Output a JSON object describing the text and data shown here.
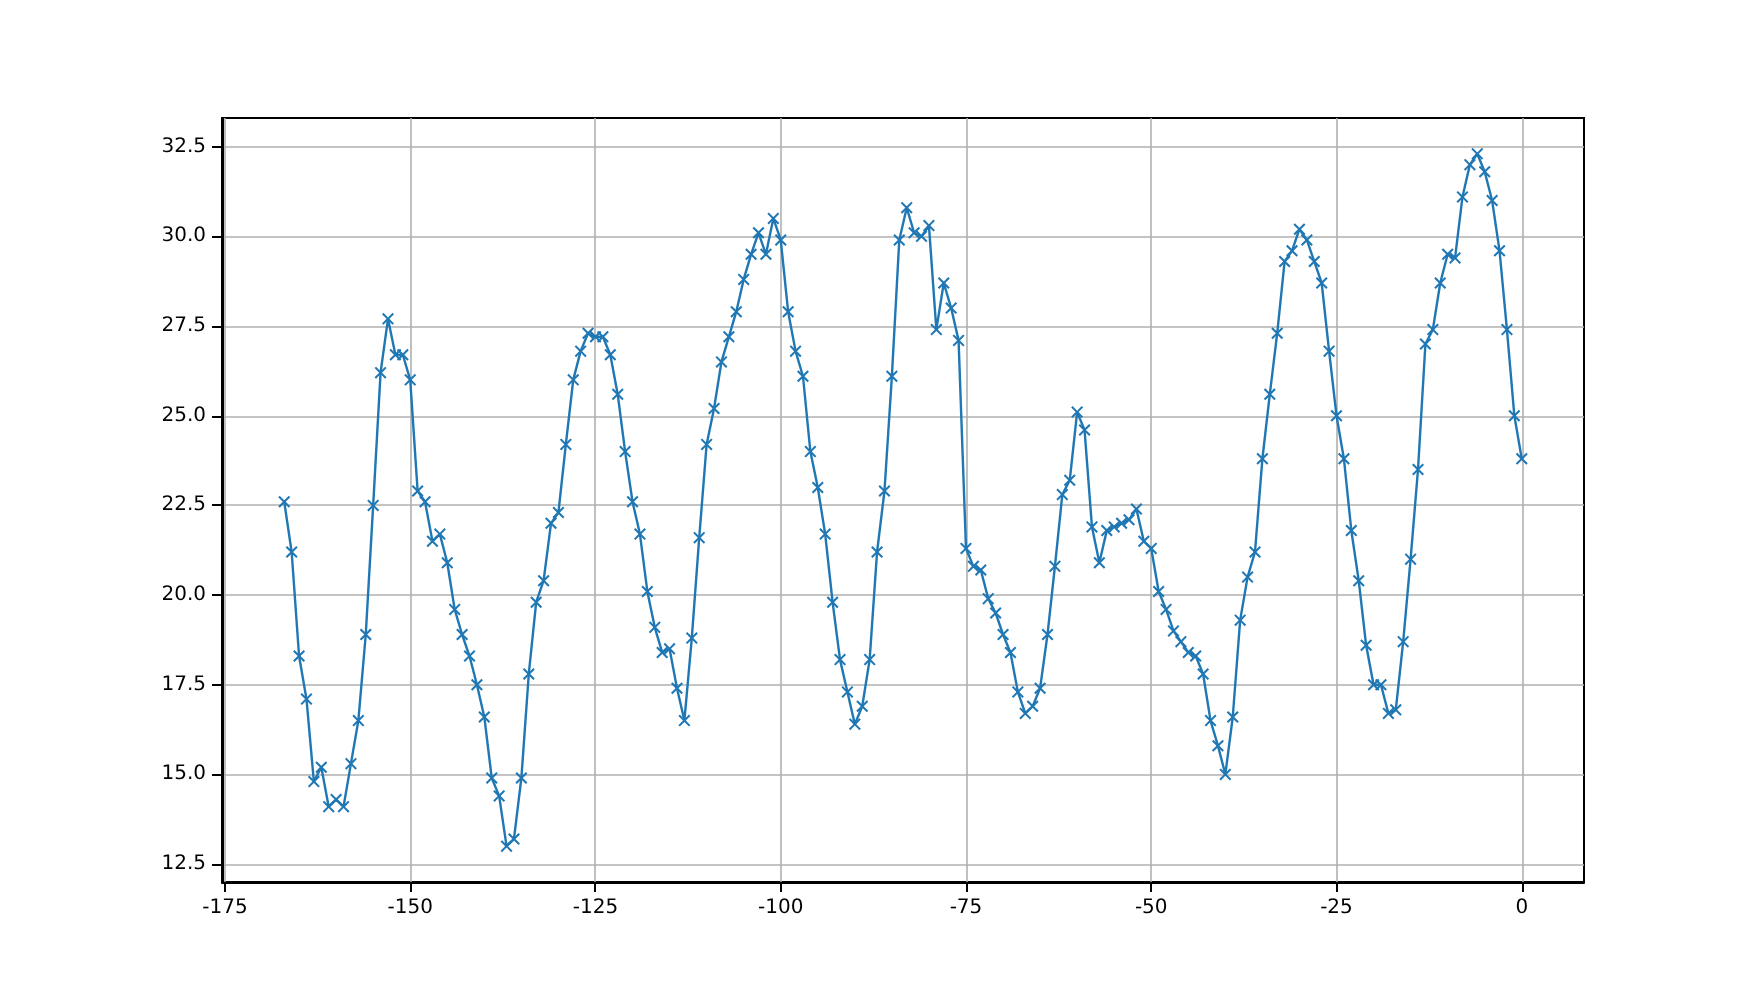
{
  "chart_data": {
    "type": "line",
    "color": "#1f77b4",
    "marker": "cross",
    "grid": true,
    "x": [
      -167,
      -166,
      -165,
      -164,
      -163,
      -162,
      -161,
      -160,
      -159,
      -158,
      -157,
      -156,
      -155,
      -154,
      -153,
      -152,
      -151,
      -150,
      -149,
      -148,
      -147,
      -146,
      -145,
      -144,
      -143,
      -142,
      -141,
      -140,
      -139,
      -138,
      -137,
      -136,
      -135,
      -134,
      -133,
      -132,
      -131,
      -130,
      -129,
      -128,
      -127,
      -126,
      -125,
      -124,
      -123,
      -122,
      -121,
      -120,
      -119,
      -118,
      -117,
      -116,
      -115,
      -114,
      -113,
      -112,
      -111,
      -110,
      -109,
      -108,
      -107,
      -106,
      -105,
      -104,
      -103,
      -102,
      -101,
      -100,
      -99,
      -98,
      -97,
      -96,
      -95,
      -94,
      -93,
      -92,
      -91,
      -90,
      -89,
      -88,
      -87,
      -86,
      -85,
      -84,
      -83,
      -82,
      -81,
      -80,
      -79,
      -78,
      -77,
      -76,
      -75,
      -74,
      -73,
      -72,
      -71,
      -70,
      -69,
      -68,
      -67,
      -66,
      -65,
      -64,
      -63,
      -62,
      -61,
      -60,
      -59,
      -58,
      -57,
      -56,
      -55,
      -54,
      -53,
      -52,
      -51,
      -50,
      -49,
      -48,
      -47,
      -46,
      -45,
      -44,
      -43,
      -42,
      -41,
      -40,
      -39,
      -38,
      -37,
      -36,
      -35,
      -34,
      -33,
      -32,
      -31,
      -30,
      -29,
      -28,
      -27,
      -26,
      -25,
      -24,
      -23,
      -22,
      -21,
      -20,
      -19,
      -18,
      -17,
      -16,
      -15,
      -14,
      -13,
      -12,
      -11,
      -10,
      -9,
      -8,
      -7,
      -6,
      -5,
      -4,
      -3,
      -2,
      -1,
      0
    ],
    "values": [
      22.6,
      21.2,
      18.3,
      17.1,
      14.8,
      15.2,
      14.1,
      14.3,
      14.1,
      15.3,
      16.5,
      18.9,
      22.5,
      26.2,
      27.7,
      26.7,
      26.7,
      26.0,
      22.9,
      22.6,
      21.5,
      21.7,
      20.9,
      19.6,
      18.9,
      18.3,
      17.5,
      16.6,
      14.9,
      14.4,
      13.0,
      13.2,
      14.9,
      17.8,
      19.8,
      20.4,
      22.0,
      22.3,
      24.2,
      26.0,
      26.8,
      27.3,
      27.2,
      27.2,
      26.7,
      25.6,
      24.0,
      22.6,
      21.7,
      20.1,
      19.1,
      18.4,
      18.5,
      17.4,
      16.5,
      18.8,
      21.6,
      24.2,
      25.2,
      26.5,
      27.2,
      27.9,
      28.8,
      29.5,
      30.1,
      29.5,
      30.5,
      29.9,
      27.9,
      26.8,
      26.1,
      24.0,
      23.0,
      21.7,
      19.8,
      18.2,
      17.3,
      16.4,
      16.9,
      18.2,
      21.2,
      22.9,
      26.1,
      29.9,
      30.8,
      30.1,
      30.0,
      30.3,
      27.4,
      28.7,
      28.0,
      27.1,
      21.3,
      20.8,
      20.7,
      19.9,
      19.5,
      18.9,
      18.4,
      17.3,
      16.7,
      16.9,
      17.4,
      18.9,
      20.8,
      22.8,
      23.2,
      25.1,
      24.6,
      21.9,
      20.9,
      21.8,
      21.9,
      22.0,
      22.1,
      22.4,
      21.5,
      21.3,
      20.1,
      19.6,
      19.0,
      18.7,
      18.4,
      18.3,
      17.8,
      16.5,
      15.8,
      15.0,
      16.6,
      19.3,
      20.5,
      21.2,
      23.8,
      25.6,
      27.3,
      29.3,
      29.6,
      30.2,
      29.9,
      29.3,
      28.7,
      26.8,
      25.0,
      23.8,
      21.8,
      20.4,
      18.6,
      17.5,
      17.5,
      16.7,
      16.8,
      18.7,
      21.0,
      23.5,
      27.0,
      27.4,
      28.7,
      29.5,
      29.4,
      31.1,
      32.0,
      32.3,
      31.8,
      31.0,
      29.6,
      27.4,
      25.0,
      23.8
    ],
    "xlim": [
      -175.4,
      8.4
    ],
    "xticks": [
      -175,
      -150,
      -125,
      -100,
      -75,
      -50,
      -25,
      0
    ],
    "ylim": [
      12.0,
      33.3
    ],
    "yticks": [
      {
        "value": 12.5,
        "label": "12.5"
      },
      {
        "value": 15,
        "label": "15.0"
      },
      {
        "value": 17.5,
        "label": "17.5"
      },
      {
        "value": 20,
        "label": "20.0"
      },
      {
        "value": 22.5,
        "label": "22.5"
      },
      {
        "value": 25,
        "label": "25.0"
      },
      {
        "value": 27.5,
        "label": "27.5"
      },
      {
        "value": 30,
        "label": "30.0"
      },
      {
        "value": 32.5,
        "label": "32.5"
      }
    ]
  }
}
